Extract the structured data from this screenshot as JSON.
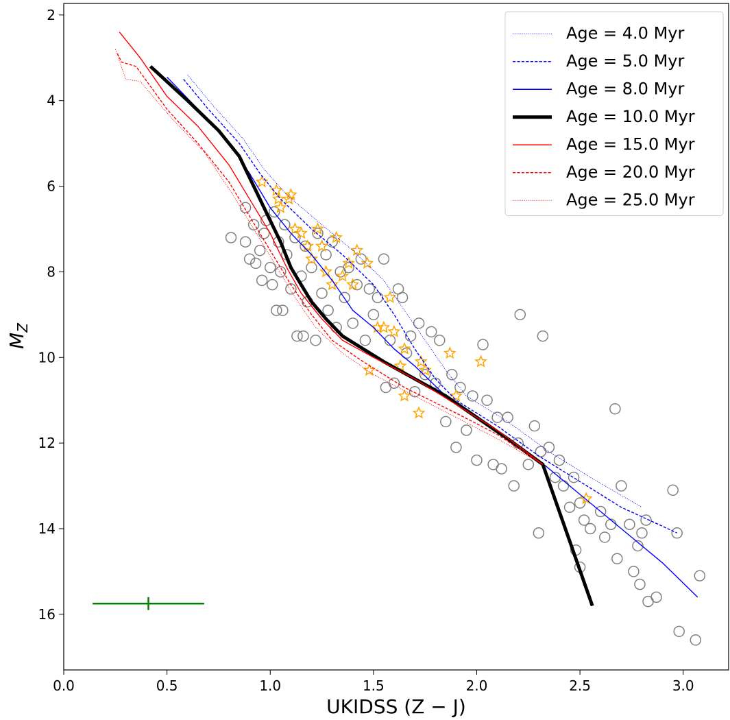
{
  "chart_data": {
    "type": "scatter",
    "xlabel": "UKIDSS (Z − J)",
    "ylabel": {
      "main": "M",
      "sub": "Z"
    },
    "xlim": [
      0,
      3.22
    ],
    "ylim": [
      17.3,
      1.73
    ],
    "xticks": [
      {
        "value": 0,
        "label": "0.0"
      },
      {
        "value": 0.5,
        "label": "0.5"
      },
      {
        "value": 1,
        "label": "1.0"
      },
      {
        "value": 1.5,
        "label": "1.5"
      },
      {
        "value": 2,
        "label": "2.0"
      },
      {
        "value": 2.5,
        "label": "2.5"
      },
      {
        "value": 3,
        "label": "3.0"
      }
    ],
    "yticks": [
      2,
      4,
      6,
      8,
      10,
      12,
      14,
      16
    ],
    "legend": "upper right",
    "series": [
      {
        "type": "scatter",
        "marker": "circle",
        "color": "#808080",
        "x": [
          0.81,
          0.88,
          0.88,
          0.9,
          0.92,
          0.93,
          0.95,
          0.96,
          0.97,
          0.98,
          1.0,
          1.01,
          1.02,
          1.03,
          1.04,
          1.05,
          1.06,
          1.07,
          1.08,
          1.1,
          1.12,
          1.13,
          1.15,
          1.16,
          1.17,
          1.18,
          1.2,
          1.22,
          1.23,
          1.25,
          1.27,
          1.28,
          1.3,
          1.32,
          1.34,
          1.36,
          1.38,
          1.4,
          1.42,
          1.44,
          1.46,
          1.48,
          1.5,
          1.52,
          1.55,
          1.56,
          1.58,
          1.6,
          1.62,
          1.64,
          1.66,
          1.68,
          1.7,
          1.72,
          1.75,
          1.78,
          1.8,
          1.82,
          1.85,
          1.88,
          1.9,
          1.92,
          1.95,
          1.98,
          2.0,
          2.03,
          2.05,
          2.08,
          2.1,
          2.12,
          2.15,
          2.18,
          2.2,
          2.21,
          2.25,
          2.28,
          2.3,
          2.31,
          2.32,
          2.35,
          2.38,
          2.4,
          2.42,
          2.45,
          2.47,
          2.48,
          2.5,
          2.5,
          2.52,
          2.55,
          2.6,
          2.62,
          2.65,
          2.67,
          2.68,
          2.7,
          2.74,
          2.76,
          2.78,
          2.79,
          2.8,
          2.82,
          2.83,
          2.87,
          2.95,
          2.97,
          2.98,
          3.06,
          3.08
        ],
        "values": [
          7.2,
          7.3,
          6.5,
          7.7,
          6.9,
          7.8,
          7.5,
          8.2,
          7.1,
          6.8,
          7.9,
          8.3,
          6.6,
          8.9,
          7.3,
          8.0,
          8.9,
          6.9,
          7.6,
          8.4,
          7.2,
          9.5,
          8.1,
          9.5,
          7.4,
          8.7,
          7.9,
          9.6,
          7.1,
          8.5,
          7.6,
          8.9,
          7.3,
          9.3,
          8.0,
          8.6,
          7.9,
          9.2,
          8.3,
          7.7,
          9.6,
          8.4,
          9.0,
          8.6,
          7.7,
          10.7,
          9.6,
          10.6,
          8.4,
          8.6,
          9.9,
          9.5,
          10.8,
          9.2,
          10.4,
          9.4,
          10.6,
          9.6,
          11.5,
          10.4,
          12.1,
          10.7,
          11.7,
          10.9,
          12.4,
          9.7,
          11.0,
          12.5,
          11.4,
          12.6,
          11.4,
          13.0,
          12.0,
          9.0,
          12.5,
          11.6,
          14.1,
          12.2,
          9.5,
          12.1,
          12.8,
          12.4,
          13.0,
          13.5,
          12.8,
          14.5,
          14.9,
          13.4,
          13.8,
          14.0,
          13.6,
          14.2,
          13.9,
          11.2,
          14.7,
          13.0,
          13.9,
          15.0,
          14.4,
          15.3,
          14.1,
          13.8,
          15.7,
          15.6,
          13.1,
          14.1,
          16.4,
          16.6,
          15.1
        ]
      },
      {
        "type": "scatter",
        "marker": "star",
        "color": "#ffa500",
        "x": [
          0.96,
          1.03,
          1.04,
          1.05,
          1.09,
          1.1,
          1.12,
          1.15,
          1.18,
          1.2,
          1.23,
          1.25,
          1.27,
          1.3,
          1.32,
          1.35,
          1.38,
          1.4,
          1.42,
          1.47,
          1.48,
          1.52,
          1.55,
          1.58,
          1.6,
          1.63,
          1.65,
          1.65,
          1.72,
          1.73,
          1.75,
          1.87,
          1.9,
          2.02,
          2.53
        ],
        "values": [
          5.9,
          6.1,
          6.3,
          6.5,
          6.3,
          6.2,
          7.0,
          7.1,
          7.4,
          7.7,
          7.0,
          7.4,
          8.0,
          8.3,
          7.2,
          8.1,
          7.8,
          8.3,
          7.5,
          7.8,
          10.3,
          9.3,
          9.3,
          8.6,
          9.4,
          10.2,
          9.8,
          10.9,
          11.3,
          10.1,
          10.3,
          9.9,
          10.9,
          10.1,
          13.3
        ]
      },
      {
        "type": "line",
        "name": "Age = 4.0 Myr",
        "color": "#0000ff",
        "linestyle": "dotted",
        "linewidth": 0.6,
        "x": [
          0.6,
          0.72,
          0.87,
          0.97,
          1.08,
          1.25,
          1.4,
          1.55,
          1.65,
          1.75,
          1.85,
          1.95,
          2.15,
          2.35,
          2.55,
          2.8
        ],
        "values": [
          3.4,
          4.1,
          4.9,
          5.6,
          6.2,
          6.9,
          7.5,
          8.2,
          8.9,
          9.6,
          10.3,
          10.9,
          11.5,
          12.2,
          12.8,
          13.5
        ]
      },
      {
        "type": "line",
        "name": "Age = 5.0 Myr",
        "color": "#0000ff",
        "linestyle": "dashed",
        "linewidth": 1,
        "x": [
          0.58,
          0.7,
          0.85,
          0.95,
          1.05,
          1.2,
          1.35,
          1.5,
          1.6,
          1.7,
          1.8,
          1.9,
          2.1,
          2.3,
          2.5,
          2.7,
          2.97
        ],
        "values": [
          3.5,
          4.2,
          5.0,
          5.7,
          6.3,
          7.0,
          7.6,
          8.3,
          9.0,
          9.8,
          10.5,
          11.0,
          11.6,
          12.3,
          12.9,
          13.5,
          14.1
        ]
      },
      {
        "type": "line",
        "name": "Age = 8.0 Myr",
        "color": "#0000ff",
        "linestyle": "solid",
        "linewidth": 1,
        "x": [
          0.5,
          0.65,
          0.8,
          0.9,
          1.0,
          1.1,
          1.2,
          1.3,
          1.4,
          1.5,
          1.6,
          1.7,
          1.85,
          2.0,
          2.15,
          2.3,
          2.5,
          2.7,
          2.9,
          3.07
        ],
        "values": [
          3.45,
          4.2,
          5.0,
          5.7,
          6.5,
          7.1,
          7.6,
          8.2,
          8.9,
          9.3,
          9.8,
          10.2,
          10.9,
          11.4,
          11.9,
          12.4,
          13.2,
          14.0,
          14.8,
          15.6
        ]
      },
      {
        "type": "line",
        "name": "Age = 10.0 Myr",
        "color": "#000000",
        "linestyle": "solid",
        "linewidth": 3.5,
        "x": [
          0.42,
          0.6,
          0.75,
          0.85,
          0.9,
          0.95,
          1.0,
          1.05,
          1.1,
          1.15,
          1.2,
          1.27,
          1.35,
          1.45,
          1.55,
          1.7,
          1.85,
          2.0,
          2.15,
          2.32,
          2.56
        ],
        "values": [
          3.2,
          4.0,
          4.7,
          5.3,
          5.8,
          6.3,
          6.8,
          7.3,
          7.9,
          8.3,
          8.7,
          9.1,
          9.5,
          9.8,
          10.1,
          10.5,
          10.9,
          11.4,
          11.9,
          12.5,
          15.8
        ]
      },
      {
        "type": "line",
        "name": "Age = 15.0 Myr",
        "color": "#ff0000",
        "linestyle": "solid",
        "linewidth": 1,
        "x": [
          0.27,
          0.37,
          0.5,
          0.65,
          0.8,
          0.9,
          1.0,
          1.08,
          1.15,
          1.25,
          1.35,
          1.5,
          1.7,
          1.9,
          2.1,
          2.32
        ],
        "values": [
          2.4,
          3.0,
          3.9,
          4.6,
          5.5,
          6.3,
          7.1,
          7.9,
          8.5,
          9.1,
          9.6,
          10.0,
          10.5,
          11.1,
          11.7,
          12.5
        ]
      },
      {
        "type": "line",
        "name": "Age = 20.0 Myr",
        "color": "#ff0000",
        "linestyle": "dashed",
        "linewidth": 1,
        "x": [
          0.26,
          0.28,
          0.35,
          0.5,
          0.65,
          0.8,
          0.9,
          1.0,
          1.1,
          1.2,
          1.3,
          1.45,
          1.65,
          1.9,
          2.1,
          2.32
        ],
        "values": [
          2.9,
          3.1,
          3.2,
          4.2,
          5.0,
          5.9,
          6.7,
          7.5,
          8.3,
          9.0,
          9.6,
          10.1,
          10.7,
          11.3,
          11.8,
          12.5
        ]
      },
      {
        "type": "line",
        "name": "Age = 25.0 Myr",
        "color": "#ff0000",
        "linestyle": "dotted",
        "linewidth": 0.6,
        "x": [
          0.25,
          0.3,
          0.37,
          0.52,
          0.68,
          0.82,
          0.92,
          1.02,
          1.12,
          1.22,
          1.35,
          1.5,
          1.7,
          1.9,
          2.1,
          2.32
        ],
        "values": [
          2.8,
          3.5,
          3.55,
          4.4,
          5.2,
          6.2,
          7.0,
          7.8,
          8.6,
          9.3,
          9.9,
          10.4,
          10.9,
          11.4,
          11.9,
          12.5
        ]
      },
      {
        "type": "errorbar",
        "color": "#008000",
        "x": [
          0.41
        ],
        "values": [
          15.75
        ],
        "xerr": [
          0.27
        ],
        "yerr": [
          0.15
        ]
      }
    ]
  }
}
